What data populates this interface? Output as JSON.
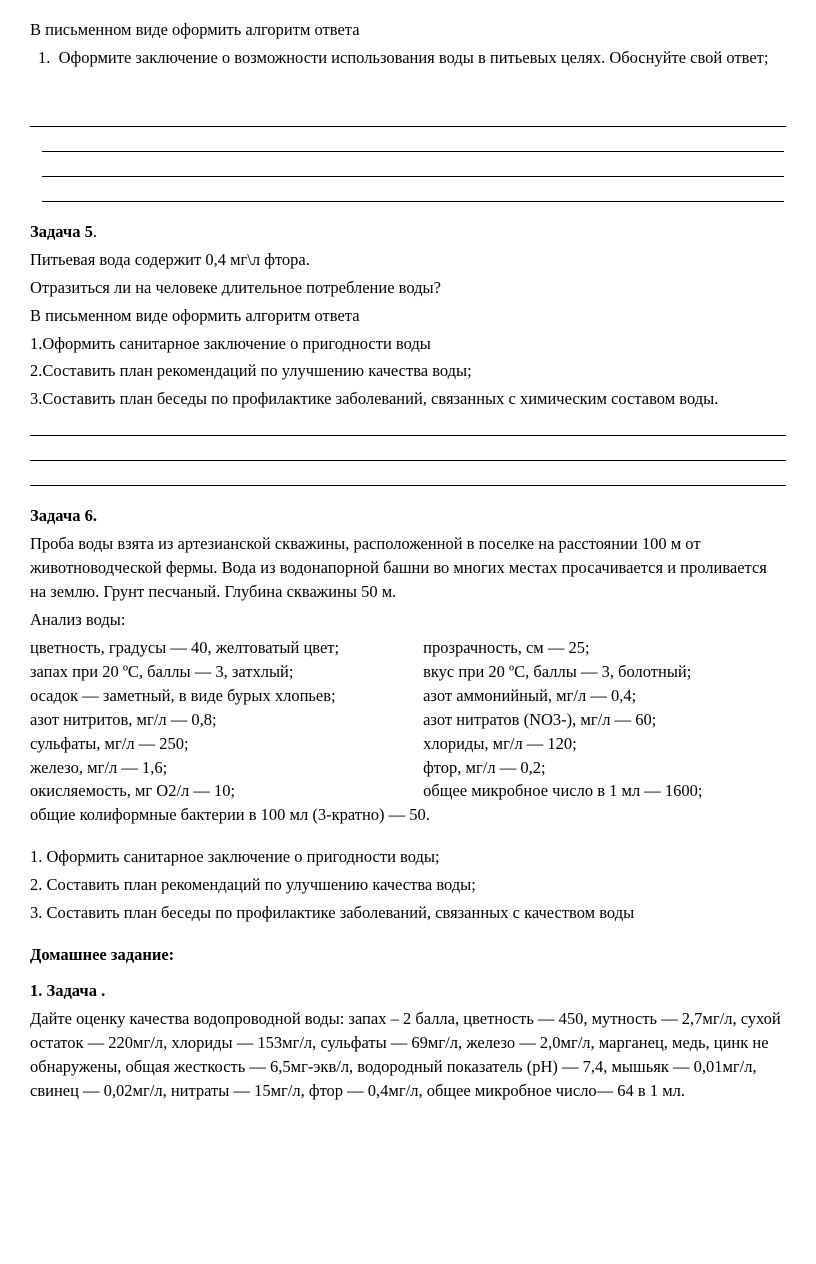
{
  "intro": {
    "line1": "В письменном виде оформить алгоритм ответа",
    "item1_num": "1.",
    "item1_text": "Оформите заключение о возможности использования воды в питьевых целях. Обоснуйте свой ответ;"
  },
  "task5": {
    "heading_bold": "Задача 5",
    "heading_p": ".",
    "l1": "Питьевая вода содержит 0,4 мг\\л фтора.",
    "l2": "Отразиться ли на человеке длительное потребление воды?",
    "l3": "В письменном виде оформить алгоритм ответа",
    "l4": "1.Оформить санитарное заключение о пригодности воды",
    "l5": "2.Составить план рекомендаций по улучшению качества воды;",
    "l6": "3.Составить план беседы по профилактике заболеваний, связанных с химическим составом воды."
  },
  "task6": {
    "heading": "Задача 6.",
    "p1": "Проба  воды  взята из артезианской скважины, расположенной в поселке на расстоянии 100 м от животноводческой фермы. Вода из водонапорной башни во многих местах просачивается и проливается на землю. Грунт песчаный. Глубина скважины 50 м.",
    "p2": "Анализ воды:",
    "rows": [
      {
        "left": "цветность, градусы — 40, желтоватый цвет;",
        "right": "прозрачность, см — 25;"
      },
      {
        "left": "запах при 20 ºС, баллы — 3, затхлый;",
        "right": " вкус при 20 ºС, баллы — 3, болотный;"
      },
      {
        "left": "осадок — заметный, в виде бурых хлопьев;",
        "right": " азот аммонийный, мг/л — 0,4;"
      },
      {
        "left": "азот нитритов, мг/л — 0,8;",
        "right": " азот нитратов (NO3-), мг/л — 60;"
      },
      {
        "left": "сульфаты, мг/л — 250;",
        "right": "хлориды, мг/л — 120;"
      },
      {
        "left": "железо, мг/л — 1,6;",
        "right": " фтор, мг/л — 0,2;"
      },
      {
        "left": "окисляемость, мг О2/л — 10;",
        "right": " общее микробное число в 1 мл — 1600;"
      }
    ],
    "overflow": "общие колиформные бактерии в 100 мл (3-кратно) — 50.",
    "q1": "1. Оформить санитарное заключение о пригодности воды;",
    "q2": "2. Составить план рекомендаций по улучшению качества воды;",
    "q3": "3. Составить план беседы по профилактике заболеваний, связанных с качеством воды"
  },
  "homework": {
    "heading": "Домашнее задание:",
    "task_heading": "1. Задача .",
    "text": "Дайте оценку качества водопроводной воды: запах – 2 балла, цветность — 450, мутность — 2,7мг/л, сухой остаток — 220мг/л, хлориды — 153мг/л, сульфаты — 69мг/л, железо — 2,0мг/л, марганец, медь, цинк не обнаружены, общая жесткость — 6,5мг-экв/л, водородный показатель (рН) — 7,4, мышьяк — 0,01мг/л, свинец — 0,02мг/л, нитраты — 15мг/л, фтор — 0,4мг/л, общее микробное число— 64 в 1 мл."
  }
}
